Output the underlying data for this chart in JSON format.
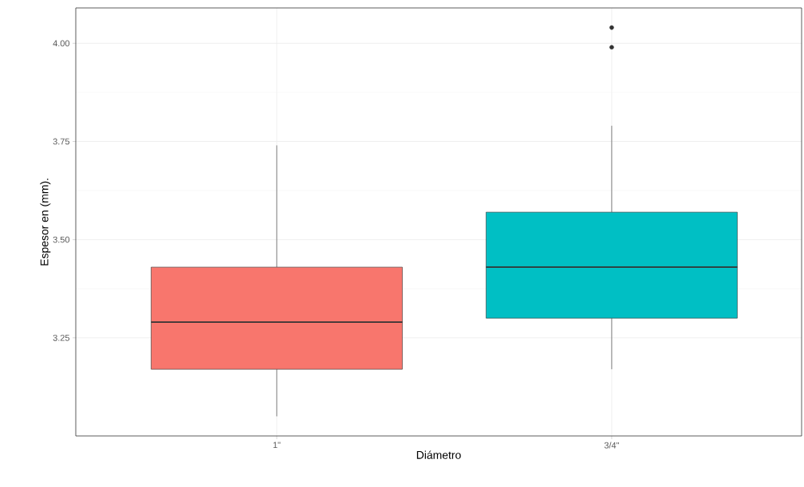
{
  "chart_data": {
    "type": "box",
    "xlabel": "Diámetro",
    "ylabel": "Espesor en (mm).",
    "categories": [
      "1\"",
      "3/4\""
    ],
    "boxes": [
      {
        "low": 3.05,
        "q1": 3.17,
        "median": 3.29,
        "q3": 3.43,
        "high": 3.74
      },
      {
        "low": 3.17,
        "q1": 3.3,
        "median": 3.43,
        "q3": 3.57,
        "high": 3.79,
        "outliers": [
          4.04,
          3.99
        ]
      }
    ],
    "colors": [
      "#f8766d",
      "#00bfc4"
    ],
    "ylim": [
      3.0,
      4.09
    ],
    "yticks": [
      3.25,
      {
        "value": 3.5,
        "label": "3.50"
      },
      3.75,
      {
        "value": 4,
        "label": "4.00"
      }
    ],
    "grid": true
  }
}
